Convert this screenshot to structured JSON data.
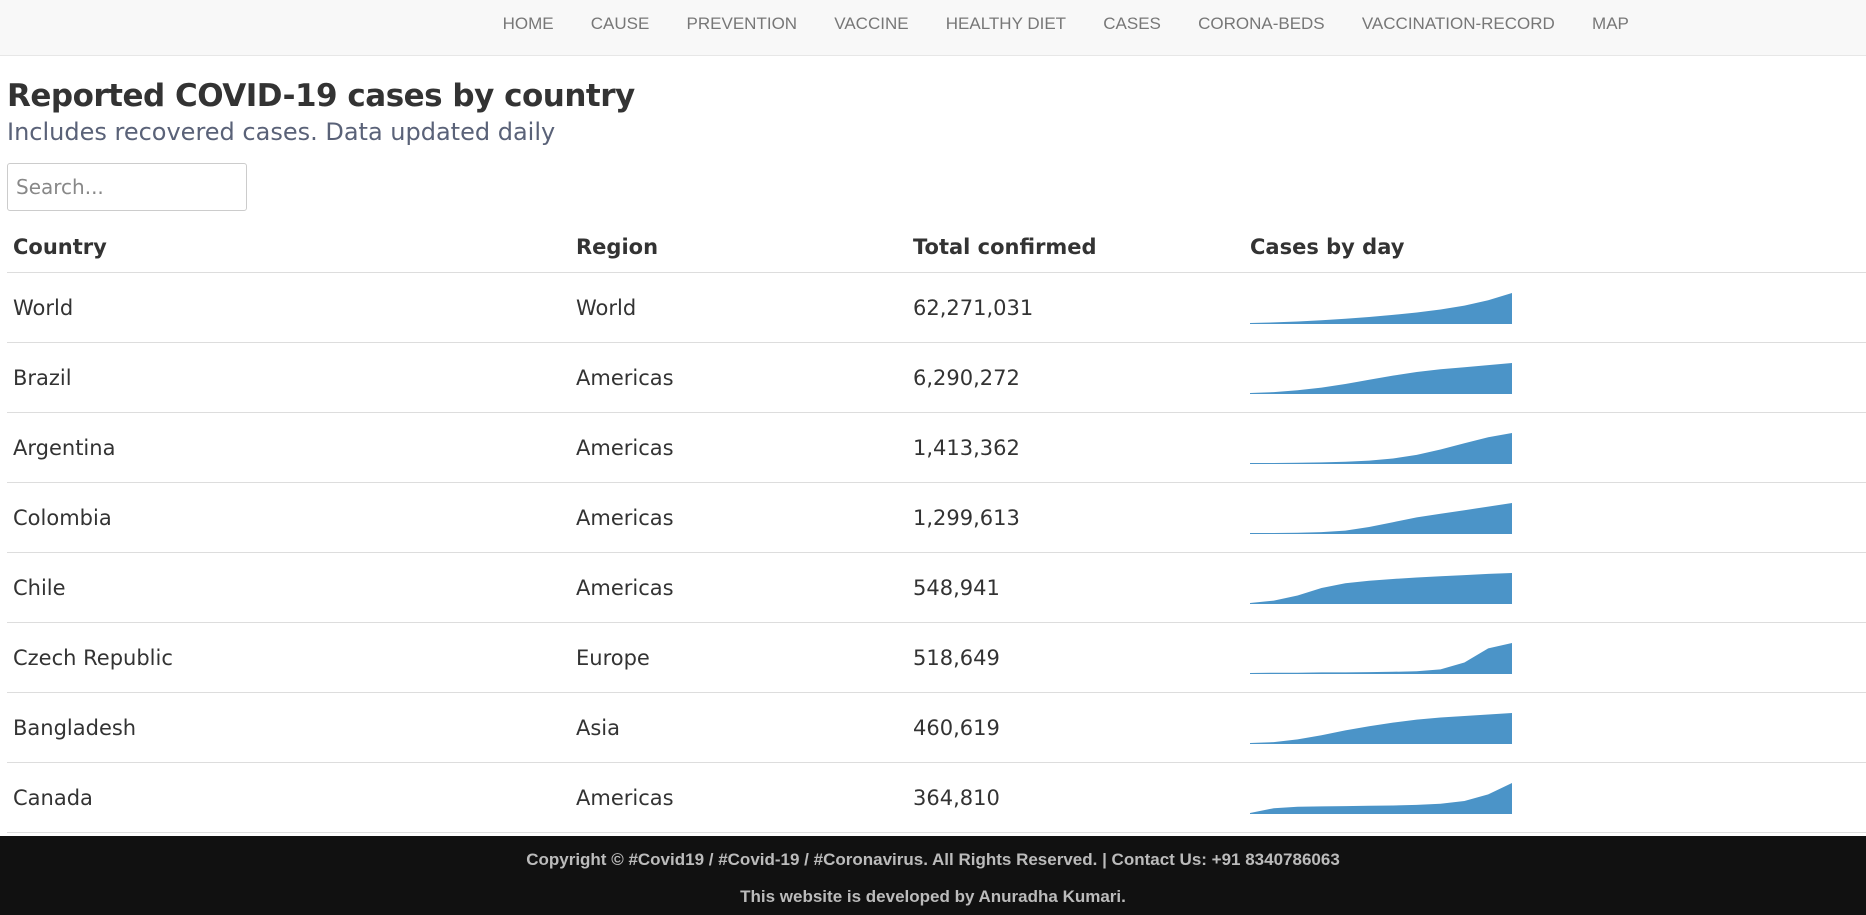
{
  "nav": {
    "items": [
      "HOME",
      "CAUSE",
      "PREVENTION",
      "VACCINE",
      "HEALTHY DIET",
      "CASES",
      "CORONA-BEDS",
      "VACCINATION-RECORD",
      "MAP"
    ]
  },
  "header": {
    "title": "Reported COVID-19 cases by country",
    "subtitle": "Includes recovered cases. Data updated daily"
  },
  "search": {
    "placeholder": "Search...",
    "value": ""
  },
  "table": {
    "columns": [
      "Country",
      "Region",
      "Total confirmed",
      "Cases by day"
    ],
    "rows": [
      {
        "country": "World",
        "region": "World",
        "total": "62,271,031",
        "trend": [
          0,
          0.02,
          0.05,
          0.09,
          0.14,
          0.2,
          0.27,
          0.35,
          0.45,
          0.58,
          0.76,
          1
        ]
      },
      {
        "country": "Brazil",
        "region": "Americas",
        "total": "6,290,272",
        "trend": [
          0,
          0.03,
          0.09,
          0.18,
          0.3,
          0.44,
          0.58,
          0.7,
          0.79,
          0.86,
          0.93,
          1
        ]
      },
      {
        "country": "Argentina",
        "region": "Americas",
        "total": "1,413,362",
        "trend": [
          0,
          0,
          0.01,
          0.02,
          0.04,
          0.08,
          0.15,
          0.27,
          0.45,
          0.66,
          0.86,
          1
        ]
      },
      {
        "country": "Colombia",
        "region": "Americas",
        "total": "1,299,613",
        "trend": [
          0,
          0,
          0.01,
          0.03,
          0.08,
          0.2,
          0.36,
          0.52,
          0.64,
          0.76,
          0.88,
          1
        ]
      },
      {
        "country": "Chile",
        "region": "Americas",
        "total": "548,941",
        "trend": [
          0,
          0.08,
          0.25,
          0.5,
          0.66,
          0.74,
          0.8,
          0.85,
          0.89,
          0.93,
          0.97,
          1
        ]
      },
      {
        "country": "Czech Republic",
        "region": "Europe",
        "total": "518,649",
        "trend": [
          0,
          0.01,
          0.01,
          0.02,
          0.02,
          0.03,
          0.04,
          0.06,
          0.12,
          0.35,
          0.82,
          1
        ]
      },
      {
        "country": "Bangladesh",
        "region": "Asia",
        "total": "460,619",
        "trend": [
          0,
          0.03,
          0.12,
          0.26,
          0.42,
          0.56,
          0.68,
          0.78,
          0.85,
          0.9,
          0.95,
          1
        ]
      },
      {
        "country": "Canada",
        "region": "Americas",
        "total": "364,810",
        "trend": [
          0,
          0.16,
          0.21,
          0.22,
          0.23,
          0.24,
          0.25,
          0.27,
          0.31,
          0.4,
          0.62,
          1
        ]
      }
    ]
  },
  "footer": {
    "line1": "Copyright © #Covid19 / #Covid-19 / #Coronavirus. All Rights Reserved. | Contact Us: +91 8340786063",
    "line2": "This website is developed by Anuradha Kumari."
  },
  "colors": {
    "accent": "#4b94c8",
    "navbar_bg": "#f8f8f8",
    "footer_bg": "#111111",
    "subtitle": "#5a6278"
  }
}
